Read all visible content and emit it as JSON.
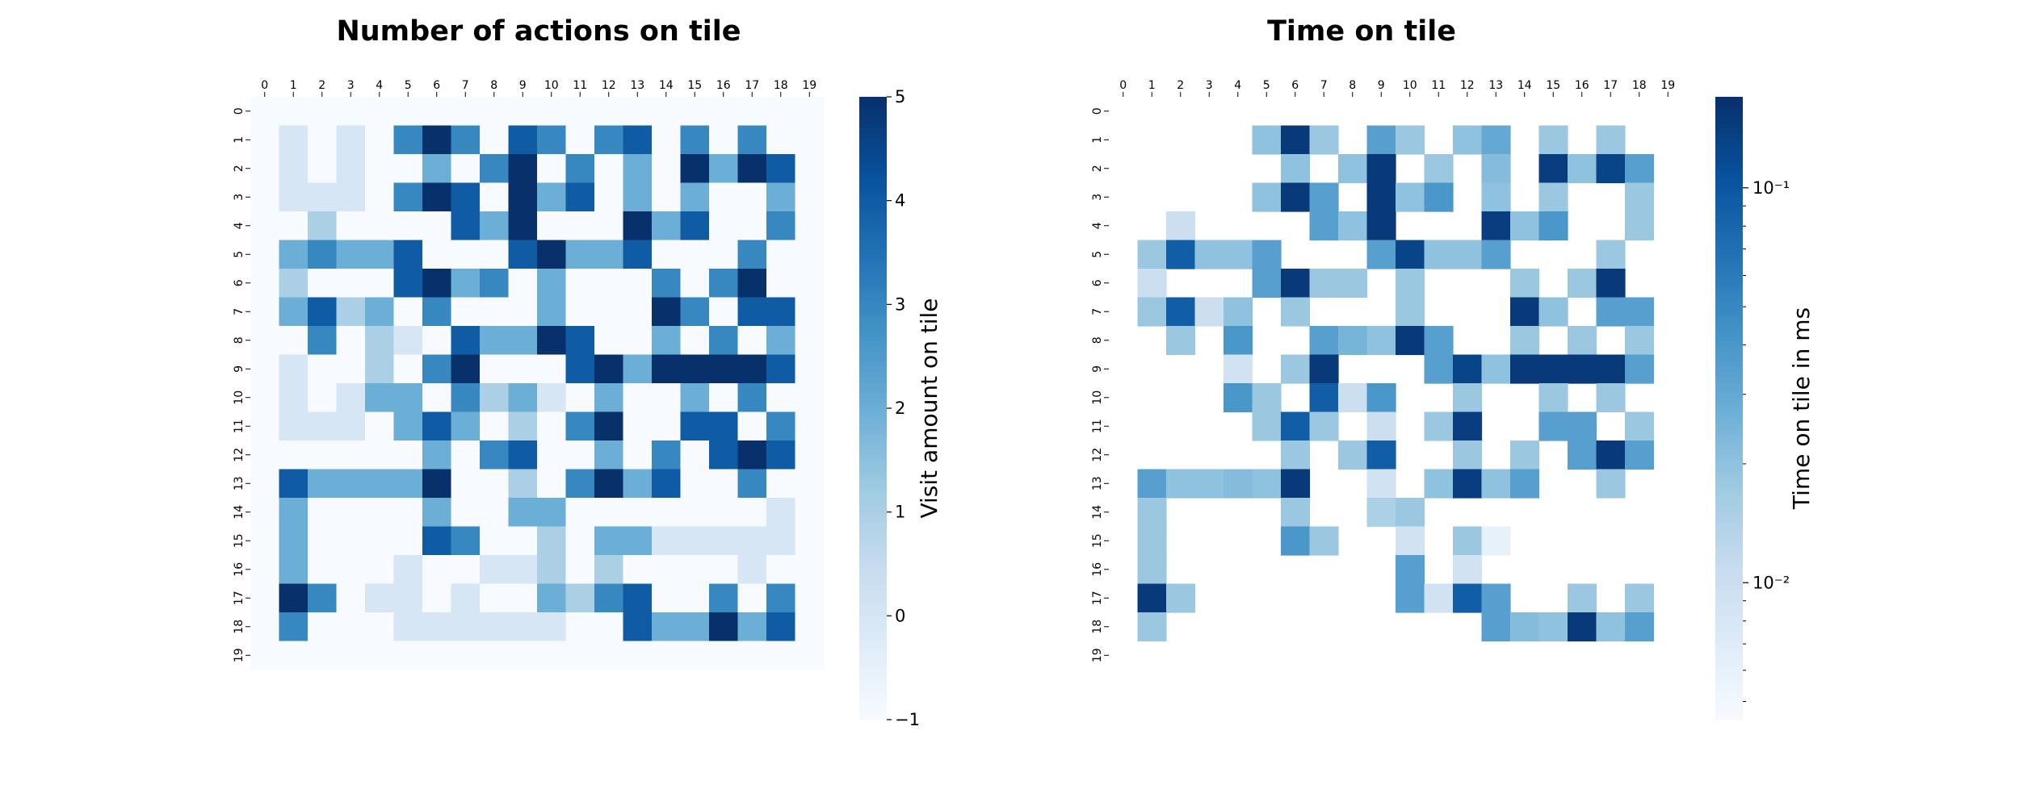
{
  "chart_data": [
    {
      "type": "heatmap",
      "title": "Number of actions on tile",
      "x_ticks": [
        "0",
        "1",
        "2",
        "3",
        "4",
        "5",
        "6",
        "7",
        "8",
        "9",
        "10",
        "11",
        "12",
        "13",
        "14",
        "15",
        "16",
        "17",
        "18",
        "19"
      ],
      "y_ticks": [
        "0",
        "1",
        "2",
        "3",
        "4",
        "5",
        "6",
        "7",
        "8",
        "9",
        "10",
        "11",
        "12",
        "13",
        "14",
        "15",
        "16",
        "17",
        "18",
        "19"
      ],
      "colorbar": {
        "label": "Visit amount on tile",
        "scale": "linear",
        "range": [
          -1,
          5
        ],
        "ticks": [
          "−1",
          "0",
          "1",
          "2",
          "3",
          "4",
          "5"
        ],
        "colormap": "Blues"
      },
      "values": [
        [
          -1,
          -1,
          -1,
          -1,
          -1,
          -1,
          -1,
          -1,
          -1,
          -1,
          -1,
          -1,
          -1,
          -1,
          -1,
          -1,
          -1,
          -1,
          -1,
          -1
        ],
        [
          -1,
          0,
          -1,
          0,
          -1,
          3,
          5,
          3,
          -1,
          4,
          3,
          -1,
          3,
          4,
          -1,
          3,
          -1,
          3,
          -1,
          -1
        ],
        [
          -1,
          0,
          -1,
          0,
          -1,
          -1,
          2,
          -1,
          3,
          5,
          -1,
          3,
          -1,
          2,
          -1,
          5,
          2,
          5,
          4,
          -1
        ],
        [
          -1,
          0,
          0,
          0,
          -1,
          3,
          5,
          4,
          -1,
          5,
          2,
          4,
          -1,
          2,
          -1,
          2,
          -1,
          -1,
          2,
          -1
        ],
        [
          -1,
          -1,
          1,
          -1,
          -1,
          -1,
          -1,
          4,
          2,
          5,
          -1,
          -1,
          -1,
          5,
          2,
          4,
          -1,
          -1,
          3,
          -1
        ],
        [
          -1,
          2,
          3,
          2,
          2,
          4,
          -1,
          -1,
          -1,
          4,
          5,
          2,
          2,
          4,
          -1,
          -1,
          -1,
          3,
          -1,
          -1
        ],
        [
          -1,
          1,
          -1,
          -1,
          -1,
          4,
          5,
          2,
          3,
          -1,
          2,
          -1,
          -1,
          -1,
          3,
          -1,
          3,
          5,
          -1,
          -1
        ],
        [
          -1,
          2,
          4,
          1,
          2,
          -1,
          3,
          -1,
          -1,
          -1,
          2,
          -1,
          -1,
          -1,
          5,
          3,
          -1,
          4,
          4,
          -1
        ],
        [
          -1,
          -1,
          3,
          -1,
          1,
          0,
          -1,
          4,
          2,
          2,
          5,
          4,
          -1,
          -1,
          2,
          -1,
          3,
          -1,
          2,
          -1
        ],
        [
          -1,
          0,
          -1,
          -1,
          1,
          -1,
          3,
          5,
          -1,
          -1,
          -1,
          4,
          5,
          2,
          5,
          5,
          5,
          5,
          4,
          -1
        ],
        [
          -1,
          0,
          -1,
          0,
          2,
          2,
          -1,
          3,
          1,
          2,
          0,
          -1,
          2,
          -1,
          -1,
          2,
          -1,
          3,
          -1,
          -1
        ],
        [
          -1,
          0,
          0,
          0,
          -1,
          2,
          4,
          2,
          -1,
          1,
          -1,
          3,
          5,
          -1,
          -1,
          4,
          4,
          -1,
          3,
          -1
        ],
        [
          -1,
          -1,
          -1,
          -1,
          -1,
          -1,
          2,
          -1,
          3,
          4,
          -1,
          -1,
          2,
          -1,
          3,
          -1,
          4,
          5,
          4,
          -1
        ],
        [
          -1,
          4,
          2,
          2,
          2,
          2,
          5,
          -1,
          -1,
          1,
          -1,
          3,
          5,
          2,
          4,
          -1,
          -1,
          3,
          -1,
          -1
        ],
        [
          -1,
          2,
          -1,
          -1,
          -1,
          -1,
          2,
          -1,
          -1,
          2,
          2,
          -1,
          -1,
          -1,
          -1,
          -1,
          -1,
          -1,
          0,
          -1
        ],
        [
          -1,
          2,
          -1,
          -1,
          -1,
          -1,
          4,
          3,
          -1,
          -1,
          1,
          -1,
          2,
          2,
          0,
          0,
          0,
          0,
          0,
          -1
        ],
        [
          -1,
          2,
          -1,
          -1,
          -1,
          0,
          -1,
          -1,
          0,
          0,
          1,
          -1,
          1,
          -1,
          -1,
          -1,
          -1,
          0,
          -1,
          -1
        ],
        [
          -1,
          5,
          3,
          -1,
          0,
          0,
          -1,
          0,
          -1,
          -1,
          2,
          1,
          3,
          4,
          -1,
          -1,
          3,
          -1,
          3,
          -1
        ],
        [
          -1,
          3,
          -1,
          -1,
          -1,
          0,
          0,
          0,
          0,
          0,
          0,
          -1,
          -1,
          4,
          2,
          2,
          5,
          2,
          4,
          -1
        ],
        [
          -1,
          -1,
          -1,
          -1,
          -1,
          -1,
          -1,
          -1,
          -1,
          -1,
          -1,
          -1,
          -1,
          -1,
          -1,
          -1,
          -1,
          -1,
          -1,
          -1
        ]
      ]
    },
    {
      "type": "heatmap",
      "title": "Time on tile",
      "x_ticks": [
        "0",
        "1",
        "2",
        "3",
        "4",
        "5",
        "6",
        "7",
        "8",
        "9",
        "10",
        "11",
        "12",
        "13",
        "14",
        "15",
        "16",
        "17",
        "18",
        "19"
      ],
      "y_ticks": [
        "0",
        "1",
        "2",
        "3",
        "4",
        "5",
        "6",
        "7",
        "8",
        "9",
        "10",
        "11",
        "12",
        "13",
        "14",
        "15",
        "16",
        "17",
        "18",
        "19"
      ],
      "colorbar": {
        "label": "Time on tile in ms",
        "scale": "log",
        "range": [
          0.0045,
          0.17
        ],
        "ticks": [
          "10⁻¹",
          "10⁻²"
        ],
        "tick_values": [
          0.1,
          0.01
        ],
        "colormap": "Blues"
      },
      "values": [
        [
          null,
          null,
          null,
          null,
          null,
          null,
          null,
          null,
          null,
          null,
          null,
          null,
          null,
          null,
          null,
          null,
          null,
          null,
          null,
          null
        ],
        [
          null,
          null,
          null,
          null,
          null,
          0.02,
          0.15,
          0.018,
          null,
          0.035,
          0.018,
          null,
          0.02,
          0.03,
          null,
          0.018,
          null,
          0.018,
          null,
          null
        ],
        [
          null,
          null,
          null,
          null,
          null,
          null,
          0.02,
          null,
          0.02,
          0.15,
          null,
          0.018,
          null,
          0.022,
          null,
          0.14,
          0.02,
          0.13,
          0.035,
          null
        ],
        [
          null,
          null,
          null,
          null,
          null,
          0.02,
          0.15,
          0.035,
          null,
          0.15,
          0.02,
          0.04,
          null,
          0.02,
          null,
          0.018,
          null,
          null,
          0.018,
          null
        ],
        [
          null,
          null,
          0.01,
          null,
          null,
          null,
          null,
          0.035,
          0.02,
          0.15,
          null,
          null,
          null,
          0.14,
          0.02,
          0.04,
          null,
          null,
          0.018,
          null
        ],
        [
          null,
          0.018,
          0.09,
          0.02,
          0.02,
          0.035,
          null,
          null,
          null,
          0.035,
          0.13,
          0.02,
          0.02,
          0.035,
          null,
          null,
          null,
          0.018,
          null,
          null
        ],
        [
          null,
          0.01,
          null,
          null,
          null,
          0.035,
          0.15,
          0.018,
          0.018,
          null,
          0.018,
          null,
          null,
          null,
          0.018,
          null,
          0.018,
          0.15,
          null,
          null
        ],
        [
          null,
          0.018,
          0.09,
          0.01,
          0.02,
          null,
          0.018,
          null,
          null,
          null,
          0.018,
          null,
          null,
          null,
          0.15,
          0.02,
          null,
          0.035,
          0.035,
          null
        ],
        [
          null,
          null,
          0.018,
          null,
          0.04,
          null,
          null,
          0.035,
          0.025,
          0.02,
          0.15,
          0.035,
          null,
          null,
          0.018,
          null,
          0.018,
          null,
          0.018,
          null
        ],
        [
          null,
          null,
          null,
          null,
          0.009,
          null,
          0.018,
          0.15,
          null,
          null,
          null,
          0.035,
          0.13,
          0.02,
          0.15,
          0.15,
          0.15,
          0.15,
          0.035,
          null
        ],
        [
          null,
          null,
          null,
          null,
          0.04,
          0.018,
          null,
          0.09,
          0.01,
          0.04,
          null,
          null,
          0.018,
          null,
          null,
          0.018,
          null,
          0.018,
          null,
          null
        ],
        [
          null,
          null,
          null,
          null,
          null,
          0.018,
          0.09,
          0.018,
          null,
          0.01,
          null,
          0.018,
          0.14,
          null,
          null,
          0.035,
          0.035,
          null,
          0.018,
          null
        ],
        [
          null,
          null,
          null,
          null,
          null,
          null,
          0.018,
          null,
          0.018,
          0.09,
          null,
          null,
          0.018,
          null,
          0.018,
          null,
          0.035,
          0.15,
          0.035,
          null
        ],
        [
          null,
          0.035,
          0.02,
          0.02,
          0.022,
          0.02,
          0.15,
          null,
          null,
          0.009,
          null,
          0.02,
          0.14,
          0.02,
          0.035,
          null,
          null,
          0.018,
          null,
          null
        ],
        [
          null,
          0.018,
          null,
          null,
          null,
          null,
          0.018,
          null,
          null,
          0.015,
          0.018,
          null,
          null,
          null,
          null,
          null,
          null,
          null,
          null,
          null
        ],
        [
          null,
          0.018,
          null,
          null,
          null,
          null,
          0.04,
          0.018,
          null,
          null,
          0.009,
          null,
          0.018,
          0.006,
          null,
          null,
          null,
          null,
          null,
          null
        ],
        [
          null,
          0.018,
          null,
          null,
          null,
          null,
          null,
          null,
          null,
          null,
          0.035,
          null,
          0.009,
          null,
          null,
          null,
          null,
          null,
          null,
          null
        ],
        [
          null,
          0.15,
          0.018,
          null,
          null,
          null,
          null,
          null,
          null,
          null,
          0.035,
          0.009,
          0.09,
          0.035,
          null,
          null,
          0.018,
          null,
          0.018,
          null
        ],
        [
          null,
          0.018,
          null,
          null,
          null,
          null,
          null,
          null,
          null,
          null,
          null,
          null,
          null,
          0.035,
          0.022,
          0.02,
          0.15,
          0.02,
          0.035,
          null
        ],
        [
          null,
          null,
          null,
          null,
          null,
          null,
          null,
          null,
          null,
          null,
          null,
          null,
          null,
          null,
          null,
          null,
          null,
          null,
          null,
          null
        ]
      ]
    }
  ]
}
